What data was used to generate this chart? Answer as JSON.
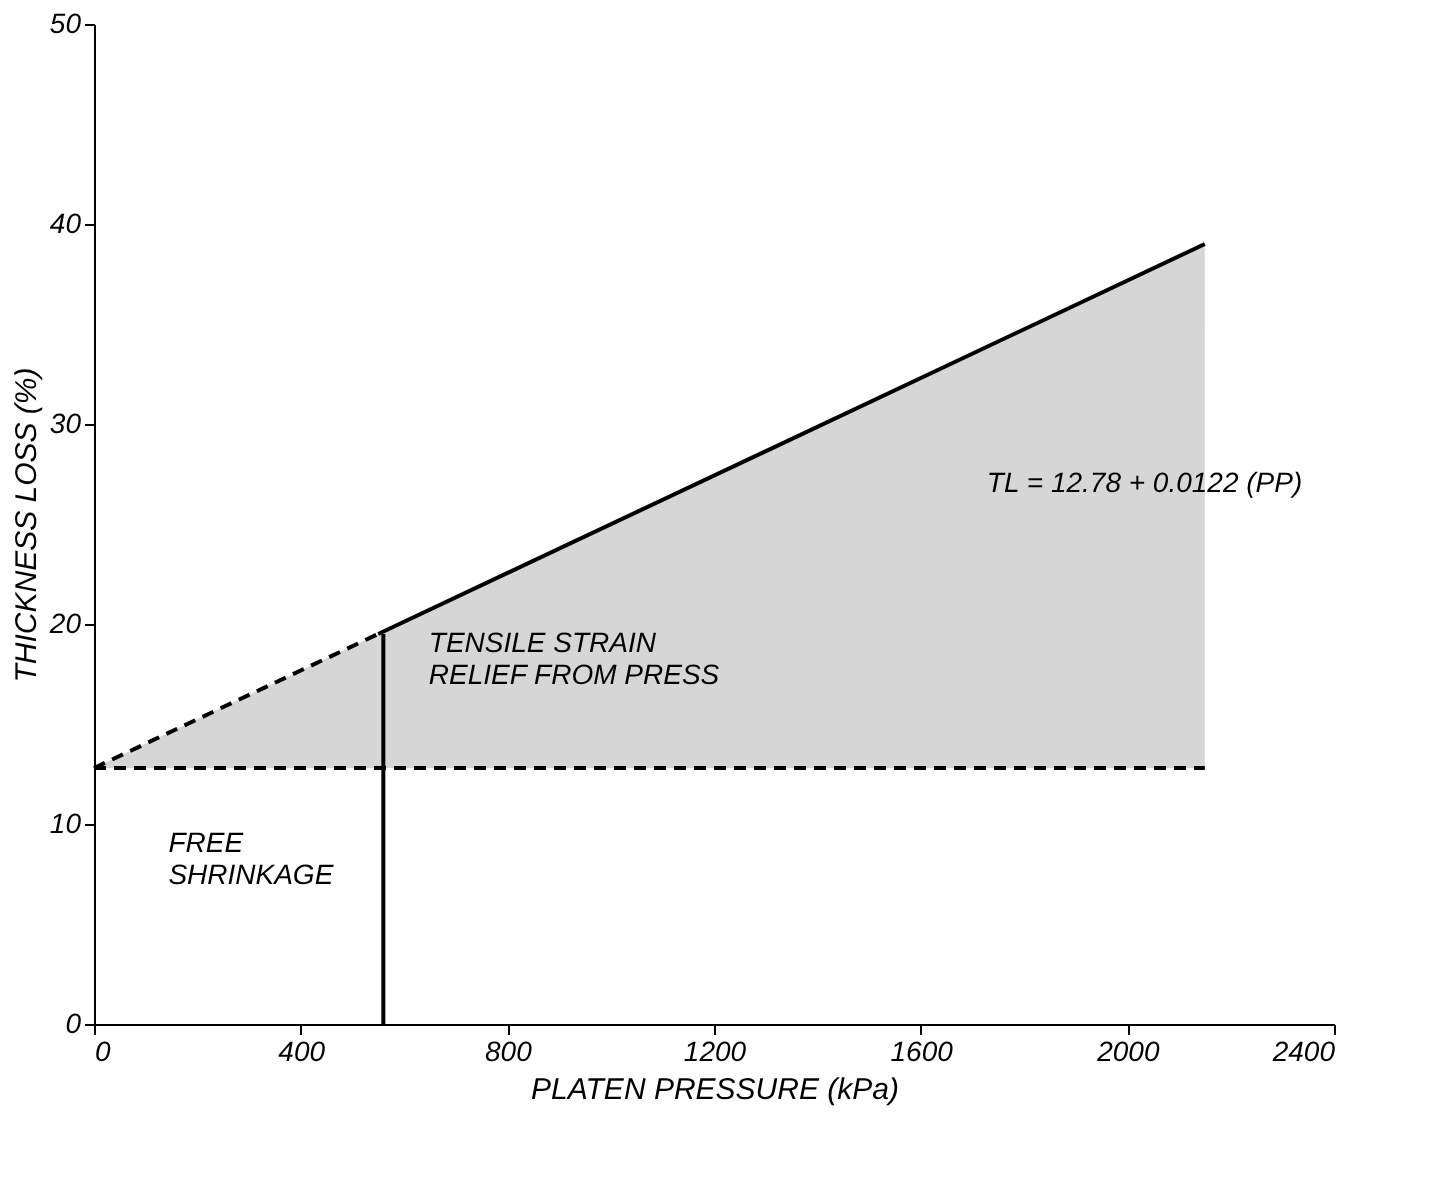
{
  "chart_data": {
    "type": "line",
    "xlabel": "PLATEN PRESSURE (kPa)",
    "ylabel": "THICKNESS LOSS (%)",
    "xlim": [
      0,
      2400
    ],
    "xticks": [
      0,
      400,
      800,
      1200,
      1600,
      2000,
      2400
    ],
    "ylim": [
      0,
      50
    ],
    "yticks": [
      0,
      10,
      20,
      30,
      40,
      50
    ],
    "grid": false,
    "marker": "none",
    "series": [
      {
        "color": "#000000",
        "line_style": "dashed",
        "x": [
          0,
          550
        ],
        "values": [
          12.8,
          19.5
        ],
        "lower": [
          12.8,
          12.8
        ],
        "upper": [
          12.8,
          19.5
        ]
      },
      {
        "color": "#000000",
        "line_style": "solid",
        "x": [
          550,
          2150
        ],
        "values": [
          19.5,
          39.0
        ],
        "lower": [
          12.8,
          12.8
        ],
        "upper": [
          19.5,
          39.0
        ]
      },
      {
        "color": "#000000",
        "line_style": "dashed",
        "x": [
          0,
          2150
        ],
        "values": [
          12.8,
          12.8
        ]
      },
      {
        "color": "#000000",
        "line_style": "solid",
        "x": [
          560,
          560
        ],
        "values": [
          0,
          19.5
        ]
      }
    ],
    "annotations": [
      "TL = 12.78 + 0.0122 (PP)",
      "TENSILE STRAIN\nRELIEF FROM PRESS",
      "FREE\nSHRINKAGE"
    ]
  }
}
